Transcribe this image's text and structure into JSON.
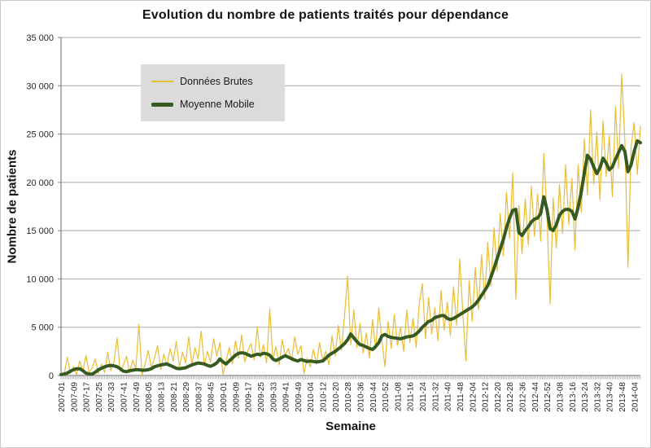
{
  "chart_data": {
    "type": "line",
    "title": "Evolution du nombre de patients traités pour dépendance",
    "xlabel": "Semaine",
    "ylabel": "Nombre de patients",
    "ylim": [
      0,
      35000
    ],
    "ytick_step": 5000,
    "ytick_labels": [
      "0",
      "5 000",
      "10 000",
      "15 000",
      "20 000",
      "25 000",
      "30 000",
      "35 000"
    ],
    "grid": "horizontal",
    "legend_position": "inside-top-left",
    "x_week_span": 372,
    "x_tick_every_weeks": 8,
    "x_tick_labels": [
      "2007-01",
      "2007-09",
      "2007-17",
      "2007-25",
      "2007-33",
      "2007-41",
      "2007-49",
      "2008-05",
      "2008-13",
      "2008-21",
      "2008-29",
      "2008-37",
      "2008-45",
      "2009-01",
      "2009-09",
      "2009-17",
      "2009-25",
      "2009-33",
      "2009-41",
      "2009-49",
      "2010-04",
      "2010-12",
      "2010-20",
      "2010-28",
      "2010-36",
      "2010-44",
      "2010-52",
      "2011-08",
      "2011-16",
      "2011-24",
      "2011-32",
      "2011-40",
      "2011-48",
      "2012-04",
      "2012-12",
      "2012-20",
      "2012-28",
      "2012-36",
      "2012-44",
      "2012-52",
      "2013-08",
      "2013-16",
      "2013-24",
      "2013-32",
      "2013-40",
      "2013-48",
      "2014-04"
    ],
    "sample_step_weeks": 2,
    "series": [
      {
        "name": "Données Brutes",
        "color": "#e9be35",
        "stroke_width": 1.2,
        "values": [
          300,
          100,
          1900,
          200,
          900,
          100,
          1500,
          400,
          2100,
          300,
          800,
          1700,
          200,
          1200,
          300,
          2400,
          500,
          1400,
          3900,
          400,
          1100,
          2000,
          300,
          1600,
          700,
          5300,
          50,
          1200,
          2600,
          800,
          1800,
          3100,
          600,
          2200,
          1000,
          2800,
          1500,
          3500,
          900,
          2400,
          1300,
          4000,
          1100,
          2900,
          1700,
          4600,
          1000,
          2500,
          1400,
          3800,
          2000,
          3400,
          100,
          1500,
          2900,
          1200,
          3600,
          1800,
          4200,
          1400,
          2600,
          3300,
          1600,
          5000,
          1900,
          3200,
          1300,
          6900,
          1700,
          3000,
          1100,
          3700,
          2100,
          2800,
          1500,
          4000,
          2200,
          3100,
          200,
          1800,
          900,
          2700,
          1200,
          3400,
          1600,
          2500,
          1100,
          4100,
          2000,
          5200,
          2600,
          6100,
          10300,
          3200,
          6800,
          2900,
          5400,
          2300,
          4400,
          1800,
          5800,
          2700,
          7000,
          3600,
          900,
          5600,
          2800,
          6300,
          3100,
          5000,
          2500,
          6800,
          3400,
          5900,
          2900,
          7400,
          9500,
          3800,
          8100,
          4300,
          7000,
          3600,
          8800,
          4700,
          7600,
          4100,
          9200,
          5200,
          12100,
          6400,
          1500,
          9800,
          5600,
          11200,
          6800,
          12500,
          7900,
          13800,
          9200,
          15300,
          10800,
          16800,
          12400,
          19000,
          14200,
          21000,
          7900,
          17600,
          12600,
          18300,
          13500,
          19600,
          14400,
          18800,
          13900,
          23000,
          16500,
          7400,
          18400,
          13200,
          19800,
          14700,
          21800,
          15600,
          20400,
          13000,
          21800,
          16900,
          24500,
          18700,
          27500,
          19800,
          25200,
          18200,
          26400,
          20600,
          24800,
          18500,
          27800,
          21500,
          31200,
          24300,
          11200,
          23600,
          26200,
          20800,
          25800
        ]
      },
      {
        "name": "Moyenne Mobile",
        "color": "#375a20",
        "stroke_width": 4,
        "values": [
          100,
          150,
          250,
          450,
          600,
          700,
          700,
          500,
          250,
          150,
          150,
          350,
          600,
          750,
          900,
          1000,
          1050,
          1000,
          900,
          700,
          450,
          400,
          500,
          550,
          600,
          600,
          550,
          550,
          600,
          700,
          900,
          1000,
          1100,
          1150,
          1200,
          1050,
          900,
          750,
          700,
          750,
          800,
          950,
          1100,
          1200,
          1300,
          1250,
          1200,
          1050,
          950,
          1100,
          1300,
          1700,
          1400,
          1200,
          1500,
          1800,
          2100,
          2300,
          2350,
          2300,
          2150,
          2000,
          2100,
          2200,
          2150,
          2300,
          2250,
          2100,
          1700,
          1550,
          1700,
          1900,
          2050,
          1900,
          1750,
          1600,
          1500,
          1650,
          1550,
          1450,
          1500,
          1450,
          1400,
          1450,
          1500,
          1800,
          2100,
          2300,
          2500,
          2750,
          3000,
          3300,
          3700,
          4300,
          3900,
          3500,
          3200,
          3100,
          2950,
          2800,
          2700,
          3000,
          3400,
          4100,
          4250,
          4050,
          3950,
          3900,
          3850,
          3800,
          3900,
          4000,
          4050,
          4100,
          4300,
          4600,
          5000,
          5300,
          5600,
          5700,
          6000,
          6100,
          6200,
          6200,
          5900,
          5800,
          5900,
          6100,
          6300,
          6500,
          6700,
          6900,
          7100,
          7400,
          7800,
          8300,
          8800,
          9300,
          10200,
          11100,
          12100,
          13100,
          14100,
          15300,
          16300,
          17100,
          17200,
          14800,
          14500,
          15000,
          15400,
          15900,
          16200,
          16300,
          16800,
          18500,
          17200,
          15200,
          15000,
          15600,
          16600,
          17000,
          17200,
          17200,
          17000,
          16200,
          17400,
          19000,
          21000,
          22800,
          22400,
          21600,
          20900,
          21500,
          22500,
          22000,
          21300,
          21600,
          22400,
          23100,
          23800,
          23200,
          21100,
          21800,
          23200,
          24300,
          24100
        ]
      }
    ],
    "colors": {
      "gridline": "#a8a8a8",
      "axis": "#7f7f7f",
      "tick_text": "#262626",
      "legend_background": "#dbdbdb"
    }
  }
}
